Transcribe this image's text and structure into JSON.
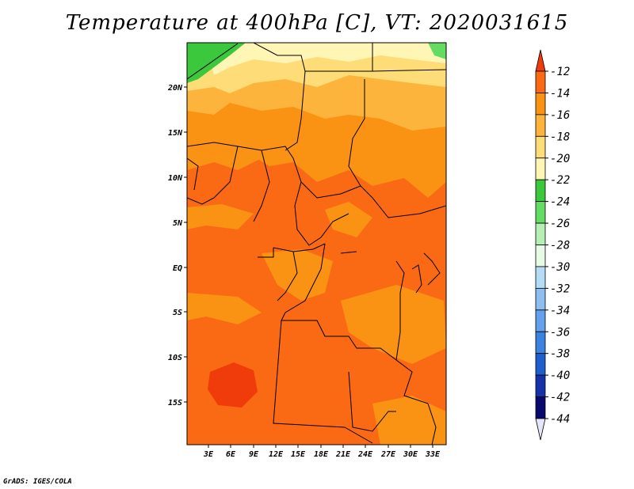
{
  "title": "Temperature at 400hPa [C], VT: 2020031615",
  "credit": "GrADS: IGES/COLA",
  "lat_labels": [
    "20N",
    "15N",
    "10N",
    "5N",
    "EQ",
    "5S",
    "10S",
    "15S"
  ],
  "lon_labels": [
    "3E",
    "6E",
    "9E",
    "12E",
    "15E",
    "18E",
    "21E",
    "24E",
    "27E",
    "30E",
    "33E"
  ],
  "colorbar": {
    "labels": [
      "-12",
      "-14",
      "-16",
      "-18",
      "-20",
      "-22",
      "-24",
      "-26",
      "-28",
      "-30",
      "-32",
      "-34",
      "-36",
      "-38",
      "-40",
      "-42",
      "-44"
    ],
    "colors": [
      "#f03c0a",
      "#fa6a14",
      "#fa9214",
      "#fcb43c",
      "#fedc78",
      "#fff5b4",
      "#3cc83c",
      "#64dc64",
      "#b4f0b4",
      "#e6fae6",
      "#b4dcf5",
      "#8cbef0",
      "#64a0eb",
      "#3c82e1",
      "#1e5fcd",
      "#1432aa",
      "#0a0a6e",
      "#e6e6fa"
    ]
  },
  "regions": {
    "sahara_north": "-20 to -18",
    "sahel": "-18 to -16",
    "central": "-16 to -14",
    "southern": "-14 to -12"
  }
}
